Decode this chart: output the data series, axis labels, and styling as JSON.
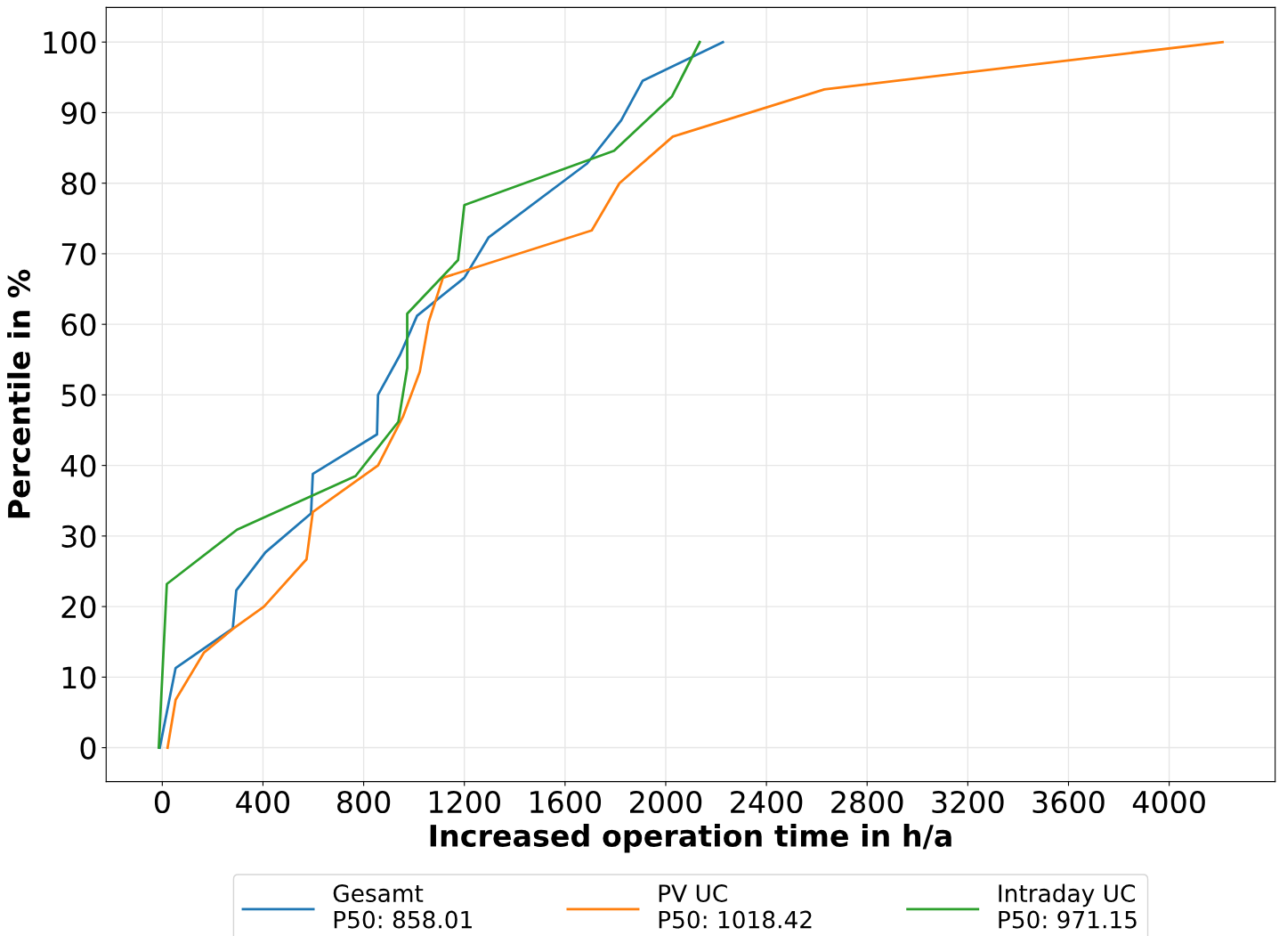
{
  "chart_data": {
    "type": "line",
    "xlabel": "Increased operation time in h/a",
    "ylabel": "Percentile in %",
    "xlim": [
      -223,
      4421
    ],
    "ylim": [
      -4.8,
      104.9
    ],
    "xticks": [
      0,
      400,
      800,
      1200,
      1600,
      2000,
      2400,
      2800,
      3200,
      3600,
      4000
    ],
    "yticks": [
      0,
      10,
      20,
      30,
      40,
      50,
      60,
      70,
      80,
      90,
      100
    ],
    "grid": true,
    "legend": "bottom",
    "line_style": "solid",
    "marker": "none",
    "series": [
      {
        "name": "Gesamt\nP50: 858.01",
        "color": "#1f77b4",
        "x": [
          -10,
          53,
          280,
          294,
          410,
          591,
          598,
          853,
          857,
          945,
          1012,
          1200,
          1296,
          1688,
          1823,
          1908,
          2227
        ],
        "values": [
          0,
          11.3,
          16.9,
          22.3,
          27.7,
          33.2,
          38.8,
          44.4,
          50,
          55.7,
          61.2,
          66.6,
          72.3,
          82.8,
          88.9,
          94.5,
          100
        ]
      },
      {
        "name": "PV UC\nP50: 1018.42",
        "color": "#ff7f0e",
        "x": [
          21,
          53,
          166,
          283,
          404,
          573,
          598,
          857,
          956,
          1023,
          1058,
          1115,
          1706,
          1816,
          2028,
          2630,
          4212
        ],
        "values": [
          0,
          6.8,
          13.5,
          16.9,
          20,
          26.7,
          33.4,
          40,
          46.9,
          53.3,
          60.3,
          66.6,
          73.3,
          80,
          86.6,
          93.3,
          100
        ]
      },
      {
        "name": "Intraday UC\nP50: 971.15",
        "color": "#2ca02c",
        "x": [
          -14,
          18,
          297,
          768,
          938,
          973,
          973,
          1175,
          1200,
          1795,
          2025,
          2135
        ],
        "values": [
          0,
          23.2,
          30.9,
          38.5,
          46.2,
          53.8,
          61.5,
          69.1,
          76.9,
          84.6,
          92.3,
          100
        ]
      }
    ]
  }
}
